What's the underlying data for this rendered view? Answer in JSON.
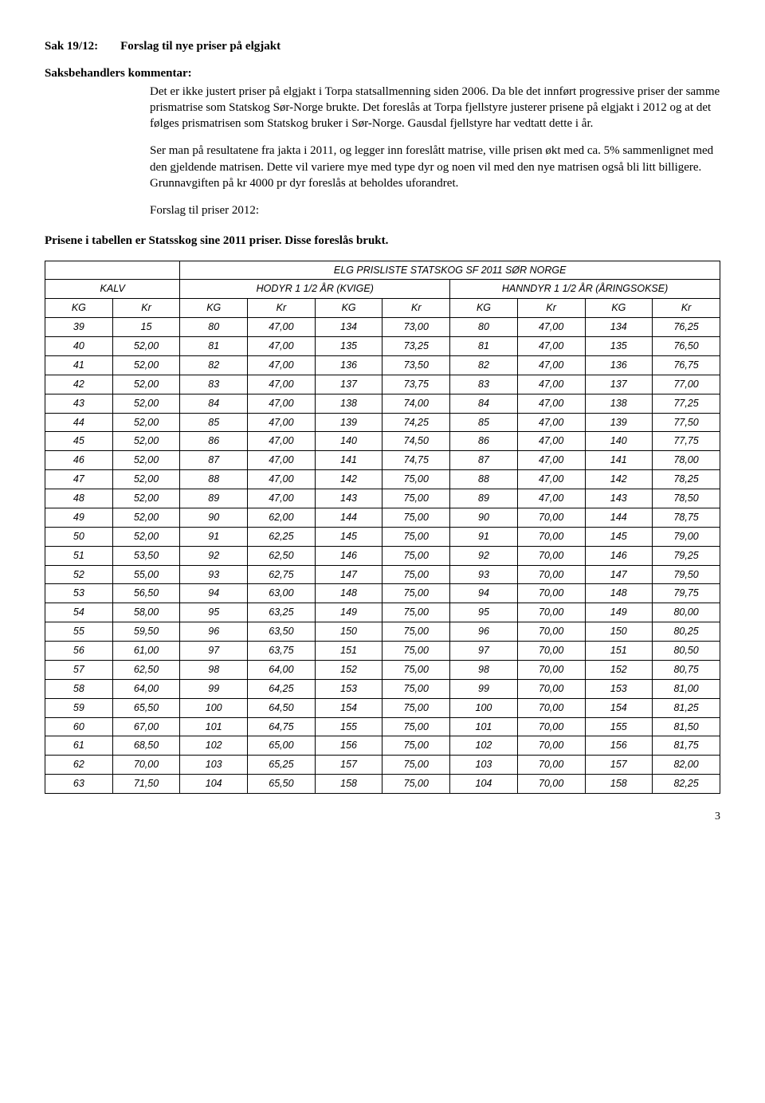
{
  "header": {
    "sak_label": "Sak 19/12:",
    "sak_title": "Forslag til nye priser på elgjakt",
    "sub_heading": "Saksbehandlers kommentar:",
    "para1": "Det er ikke justert priser på elgjakt i Torpa statsallmenning siden 2006. Da ble det innført progressive priser der samme prismatrise som Statskog Sør-Norge brukte. Det foreslås at Torpa fjellstyre justerer prisene på elgjakt i 2012 og at det følges prismatrisen som Statskog bruker i Sør-Norge. Gausdal fjellstyre har vedtatt dette i år.",
    "para2": "Ser man på resultatene fra jakta i 2011, og legger inn foreslått matrise, ville prisen økt med ca. 5% sammenlignet med den gjeldende matrisen. Dette vil variere mye med type dyr og noen vil med den nye matrisen også bli litt billigere. Grunnavgiften på kr 4000 pr dyr foreslås at beholdes uforandret.",
    "para3": "Forslag til priser 2012:",
    "price_heading": "Prisene i tabellen er Statsskog sine 2011 priser. Disse foreslås brukt."
  },
  "table": {
    "title": "ELG PRISLISTE STATSKOG SF 2011 SØR NORGE",
    "groups": [
      "KALV",
      "HODYR 1 1/2 ÅR (KVIGE)",
      "HANNDYR 1 1/2 ÅR (ÅRINGSOKSE)"
    ],
    "col_labels": [
      "KG",
      "Kr",
      "KG",
      "Kr",
      "KG",
      "Kr",
      "KG",
      "Kr",
      "KG",
      "Kr"
    ],
    "rows": [
      [
        "39",
        "15",
        "80",
        "47,00",
        "134",
        "73,00",
        "80",
        "47,00",
        "134",
        "76,25"
      ],
      [
        "40",
        "52,00",
        "81",
        "47,00",
        "135",
        "73,25",
        "81",
        "47,00",
        "135",
        "76,50"
      ],
      [
        "41",
        "52,00",
        "82",
        "47,00",
        "136",
        "73,50",
        "82",
        "47,00",
        "136",
        "76,75"
      ],
      [
        "42",
        "52,00",
        "83",
        "47,00",
        "137",
        "73,75",
        "83",
        "47,00",
        "137",
        "77,00"
      ],
      [
        "43",
        "52,00",
        "84",
        "47,00",
        "138",
        "74,00",
        "84",
        "47,00",
        "138",
        "77,25"
      ],
      [
        "44",
        "52,00",
        "85",
        "47,00",
        "139",
        "74,25",
        "85",
        "47,00",
        "139",
        "77,50"
      ],
      [
        "45",
        "52,00",
        "86",
        "47,00",
        "140",
        "74,50",
        "86",
        "47,00",
        "140",
        "77,75"
      ],
      [
        "46",
        "52,00",
        "87",
        "47,00",
        "141",
        "74,75",
        "87",
        "47,00",
        "141",
        "78,00"
      ],
      [
        "47",
        "52,00",
        "88",
        "47,00",
        "142",
        "75,00",
        "88",
        "47,00",
        "142",
        "78,25"
      ],
      [
        "48",
        "52,00",
        "89",
        "47,00",
        "143",
        "75,00",
        "89",
        "47,00",
        "143",
        "78,50"
      ],
      [
        "49",
        "52,00",
        "90",
        "62,00",
        "144",
        "75,00",
        "90",
        "70,00",
        "144",
        "78,75"
      ],
      [
        "50",
        "52,00",
        "91",
        "62,25",
        "145",
        "75,00",
        "91",
        "70,00",
        "145",
        "79,00"
      ],
      [
        "51",
        "53,50",
        "92",
        "62,50",
        "146",
        "75,00",
        "92",
        "70,00",
        "146",
        "79,25"
      ],
      [
        "52",
        "55,00",
        "93",
        "62,75",
        "147",
        "75,00",
        "93",
        "70,00",
        "147",
        "79,50"
      ],
      [
        "53",
        "56,50",
        "94",
        "63,00",
        "148",
        "75,00",
        "94",
        "70,00",
        "148",
        "79,75"
      ],
      [
        "54",
        "58,00",
        "95",
        "63,25",
        "149",
        "75,00",
        "95",
        "70,00",
        "149",
        "80,00"
      ],
      [
        "55",
        "59,50",
        "96",
        "63,50",
        "150",
        "75,00",
        "96",
        "70,00",
        "150",
        "80,25"
      ],
      [
        "56",
        "61,00",
        "97",
        "63,75",
        "151",
        "75,00",
        "97",
        "70,00",
        "151",
        "80,50"
      ],
      [
        "57",
        "62,50",
        "98",
        "64,00",
        "152",
        "75,00",
        "98",
        "70,00",
        "152",
        "80,75"
      ],
      [
        "58",
        "64,00",
        "99",
        "64,25",
        "153",
        "75,00",
        "99",
        "70,00",
        "153",
        "81,00"
      ],
      [
        "59",
        "65,50",
        "100",
        "64,50",
        "154",
        "75,00",
        "100",
        "70,00",
        "154",
        "81,25"
      ],
      [
        "60",
        "67,00",
        "101",
        "64,75",
        "155",
        "75,00",
        "101",
        "70,00",
        "155",
        "81,50"
      ],
      [
        "61",
        "68,50",
        "102",
        "65,00",
        "156",
        "75,00",
        "102",
        "70,00",
        "156",
        "81,75"
      ],
      [
        "62",
        "70,00",
        "103",
        "65,25",
        "157",
        "75,00",
        "103",
        "70,00",
        "157",
        "82,00"
      ],
      [
        "63",
        "71,50",
        "104",
        "65,50",
        "158",
        "75,00",
        "104",
        "70,00",
        "158",
        "82,25"
      ]
    ]
  },
  "page_number": "3"
}
